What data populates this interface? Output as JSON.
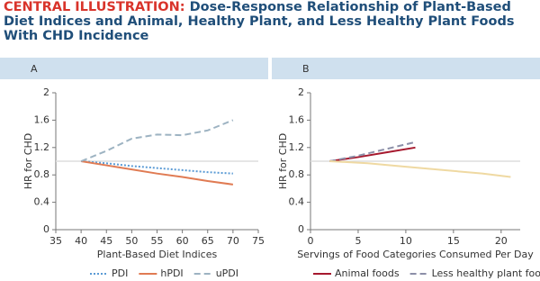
{
  "header": {
    "label": "CENTRAL ILLUSTRATION:",
    "title": "Dose-Response Relationship of Plant-Based Diet Indices and Animal, Healthy Plant, and Less Healthy Plant Foods With CHD Incidence"
  },
  "chart_data": [
    {
      "type": "line",
      "panel": "A",
      "x_label": "Plant-Based Diet Indices",
      "y_label": "HR for CHD",
      "xlim": [
        35,
        75
      ],
      "xticks": [
        35,
        40,
        45,
        50,
        55,
        60,
        65,
        70,
        75
      ],
      "ylim": [
        0,
        2
      ],
      "yticks": [
        0,
        0.4,
        0.8,
        1.2,
        1.6,
        2
      ],
      "hline": 1,
      "x": [
        40,
        45,
        50,
        55,
        60,
        65,
        70
      ],
      "series": [
        {
          "name": "PDI",
          "color": "#5b9bd5",
          "dash": "2,2",
          "values": [
            1,
            0.97,
            0.93,
            0.9,
            0.87,
            0.84,
            0.82
          ]
        },
        {
          "name": "hPDI",
          "color": "#e07b53",
          "dash": "none",
          "values": [
            1,
            0.94,
            0.88,
            0.82,
            0.77,
            0.71,
            0.66
          ]
        },
        {
          "name": "uPDI",
          "color": "#9db3c2",
          "dash": "7,4",
          "values": [
            1,
            1.15,
            1.33,
            1.39,
            1.38,
            1.45,
            1.6
          ]
        }
      ]
    },
    {
      "type": "line",
      "panel": "B",
      "x_label": "Servings of Food Categories Consumed Per Day",
      "y_label": "HR for CHD",
      "xlim": [
        0,
        22
      ],
      "xticks": [
        0,
        5,
        10,
        15,
        20
      ],
      "ylim": [
        0,
        2
      ],
      "yticks": [
        0,
        0.4,
        0.8,
        1.2,
        1.6,
        2
      ],
      "hline": 1,
      "series": [
        {
          "name": "Animal foods",
          "color": "#a6192e",
          "dash": "none",
          "x": [
            2,
            5,
            8,
            11
          ],
          "values": [
            1,
            1.06,
            1.13,
            1.2
          ]
        },
        {
          "name": "Less healthy plant foods",
          "color": "#8c8fa8",
          "dash": "7,4",
          "x": [
            2,
            5,
            8,
            11
          ],
          "values": [
            1,
            1.08,
            1.18,
            1.28
          ]
        },
        {
          "color": "#efd9a2",
          "dash": "none",
          "x": [
            2,
            6,
            10,
            14,
            18,
            21
          ],
          "values": [
            1,
            0.97,
            0.92,
            0.87,
            0.82,
            0.77
          ]
        }
      ]
    }
  ]
}
